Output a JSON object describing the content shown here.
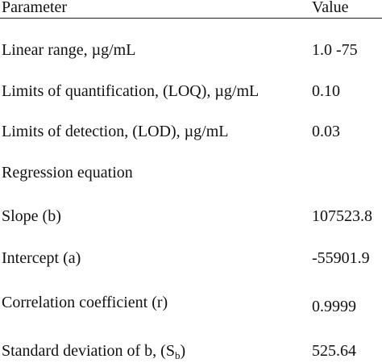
{
  "table": {
    "headers": {
      "parameter": "Parameter",
      "value": "Value"
    },
    "rows": [
      {
        "parameter": "Linear range, µg/mL",
        "value": "1.0 -75"
      },
      {
        "parameter": "Limits of quantification, (LOQ), µg/mL",
        "value": "0.10"
      },
      {
        "parameter": "Limits of detection, (LOD), µg/mL",
        "value": "0.03"
      },
      {
        "parameter": "Regression equation",
        "value": ""
      },
      {
        "parameter": "Slope (b)",
        "value": "107523.8"
      },
      {
        "parameter": "Intercept (a)",
        "value": "-55901.9"
      },
      {
        "parameter": "Correlation coefficient (r)",
        "value": "0.9999"
      },
      {
        "parameter": "Standard deviation of b, (S",
        "parameter_sub": "b",
        "parameter_suffix": ")",
        "value": "525.64"
      }
    ]
  }
}
